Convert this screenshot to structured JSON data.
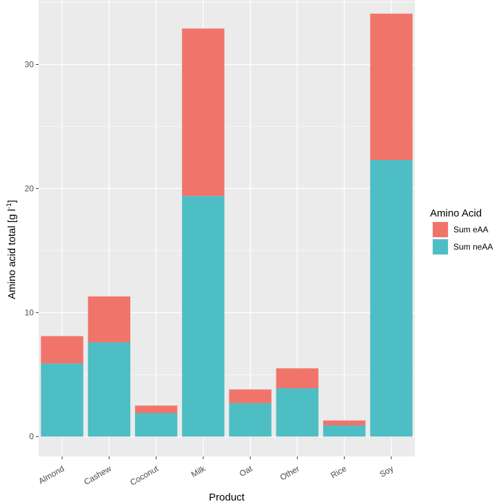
{
  "chart_data": {
    "type": "bar",
    "stacked": true,
    "categories": [
      "Almond",
      "Cashew",
      "Coconut",
      "Milk",
      "Oat",
      "Other",
      "Rice",
      "Soy"
    ],
    "series": [
      {
        "name": "Sum neAA",
        "values": [
          5.9,
          7.6,
          1.9,
          19.4,
          2.7,
          3.9,
          0.9,
          22.3
        ]
      },
      {
        "name": "Sum eAA",
        "values": [
          2.2,
          3.7,
          0.6,
          13.5,
          1.1,
          1.6,
          0.4,
          11.8
        ]
      }
    ],
    "xlabel": "Product",
    "ylabel": "Amino acid total [g l",
    "ylabel_superscript": "-1",
    "ylabel_suffix": "]",
    "ylim": [
      -1.6,
      35.2
    ],
    "yticks": [
      0,
      10,
      20,
      30
    ],
    "grid": true,
    "legend": {
      "title": "Amino Acid",
      "placement": "right",
      "entries": [
        "Sum eAA",
        "Sum neAA"
      ]
    },
    "colors": {
      "Sum eAA": "#F1746B",
      "Sum neAA": "#4DBEC4",
      "panel": "#EBEBEB",
      "grid": "#FFFFFF"
    }
  }
}
